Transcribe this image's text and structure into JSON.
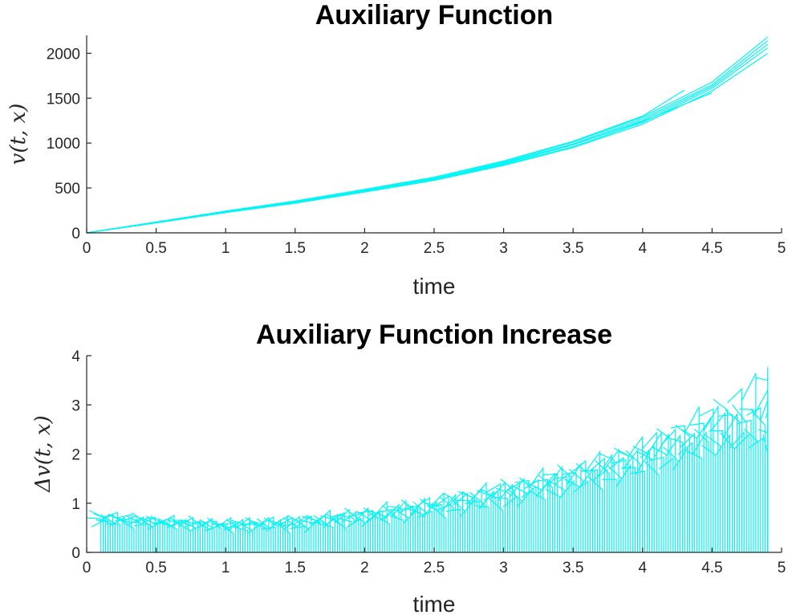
{
  "chart_data": [
    {
      "type": "line",
      "title": "Auxiliary Function",
      "xlabel": "time",
      "ylabel": "v(t, x)",
      "xlim": [
        0,
        5
      ],
      "ylim": [
        0,
        2200
      ],
      "xticks": [
        "0",
        "0.5",
        "1",
        "1.5",
        "2",
        "2.5",
        "3",
        "3.5",
        "4",
        "4.5",
        "5"
      ],
      "yticks": [
        "0",
        "500",
        "1000",
        "1500",
        "2000"
      ],
      "grid": false,
      "color": "#00ffff",
      "series": [
        {
          "x": [
            0,
            0.5,
            1,
            1.5,
            2,
            2.5,
            3,
            3.5,
            4,
            4.5,
            4.9
          ],
          "values": [
            0,
            120,
            240,
            350,
            480,
            610,
            790,
            1010,
            1290,
            1680,
            2180
          ]
        },
        {
          "x": [
            0,
            0.5,
            1,
            1.5,
            2,
            2.5,
            3,
            3.5,
            4,
            4.5,
            4.9
          ],
          "values": [
            0,
            115,
            230,
            340,
            470,
            600,
            780,
            990,
            1270,
            1650,
            2140
          ]
        },
        {
          "x": [
            0,
            0.5,
            1,
            1.5,
            2,
            2.5,
            3,
            3.5,
            4,
            4.5,
            4.9
          ],
          "values": [
            0,
            118,
            235,
            345,
            465,
            595,
            770,
            980,
            1250,
            1630,
            2100
          ]
        },
        {
          "x": [
            0,
            0.5,
            1,
            1.5,
            2,
            2.5,
            3,
            3.5,
            4,
            4.5,
            4.9
          ],
          "values": [
            0,
            112,
            228,
            335,
            460,
            590,
            760,
            960,
            1230,
            1610,
            2060
          ]
        },
        {
          "x": [
            0,
            0.5,
            1,
            1.5,
            2,
            2.5,
            3,
            3.5,
            4,
            4.5,
            4.9
          ],
          "values": [
            0,
            110,
            225,
            330,
            455,
            585,
            750,
            950,
            1210,
            1580,
            2000
          ]
        },
        {
          "x": [
            0,
            0.5,
            1,
            1.5,
            2,
            2.5,
            3,
            3.5,
            4,
            4.3
          ],
          "values": [
            0,
            121,
            242,
            355,
            485,
            620,
            800,
            1020,
            1300,
            1590
          ]
        },
        {
          "x": [
            0,
            0.5,
            1,
            1.5,
            2,
            2.5,
            3,
            3.5,
            4,
            4.5
          ],
          "values": [
            0,
            117,
            233,
            342,
            468,
            598,
            772,
            985,
            1240,
            1560
          ]
        }
      ]
    },
    {
      "type": "line",
      "title": "Auxiliary Function Increase",
      "xlabel": "time",
      "ylabel": "Δv(t, x)",
      "xlim": [
        0,
        5
      ],
      "ylim": [
        0,
        4
      ],
      "xticks": [
        "0",
        "0.5",
        "1",
        "1.5",
        "2",
        "2.5",
        "3",
        "3.5",
        "4",
        "4.5",
        "5"
      ],
      "yticks": [
        "0",
        "1",
        "2",
        "3",
        "4"
      ],
      "grid": false,
      "color": "#00ffff",
      "series": [
        {
          "x": [
            0,
            0.5,
            1,
            1.5,
            2,
            2.5,
            3,
            3.5,
            4,
            4.5,
            4.9
          ],
          "values": [
            0.7,
            0.62,
            0.55,
            0.6,
            0.75,
            0.95,
            1.2,
            1.55,
            2.0,
            2.6,
            3.1
          ]
        },
        {
          "x": [
            0,
            0.5,
            1,
            1.5,
            2,
            2.5,
            3,
            3.5,
            4,
            4.5,
            4.9
          ],
          "values": [
            0.8,
            0.68,
            0.6,
            0.66,
            0.82,
            1.05,
            1.35,
            1.7,
            2.2,
            2.9,
            3.6
          ]
        },
        {
          "x": [
            0,
            0.5,
            1,
            1.5,
            2,
            2.5,
            3,
            3.5,
            4,
            4.5,
            4.9
          ],
          "values": [
            0.6,
            0.55,
            0.48,
            0.5,
            0.62,
            0.8,
            1.0,
            1.3,
            1.65,
            2.1,
            2.5
          ]
        },
        {
          "x": [
            0,
            0.5,
            1,
            1.5,
            2,
            2.5,
            3,
            3.5,
            4,
            4.5,
            4.9
          ],
          "values": [
            0.75,
            0.65,
            0.58,
            0.63,
            0.78,
            1.0,
            1.28,
            1.62,
            2.1,
            2.75,
            2.9
          ]
        },
        {
          "x": [
            0,
            0.5,
            1,
            1.5,
            2,
            2.5,
            3,
            3.5,
            4,
            4.5,
            4.9
          ],
          "values": [
            0.65,
            0.6,
            0.52,
            0.56,
            0.7,
            0.88,
            1.12,
            1.42,
            1.8,
            2.3,
            2.2
          ]
        },
        {
          "x": [
            0,
            0.5,
            1,
            1.5,
            2,
            2.5,
            3,
            3.5,
            4,
            4.5,
            4.9
          ],
          "values": [
            0.72,
            0.64,
            0.57,
            0.62,
            0.76,
            0.98,
            1.25,
            1.58,
            1.95,
            2.45,
            2.8
          ]
        }
      ]
    }
  ]
}
